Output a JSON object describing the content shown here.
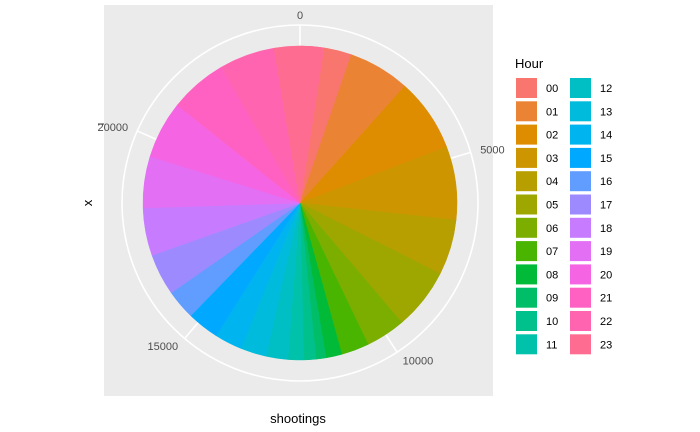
{
  "chart_data": {
    "type": "pie",
    "xlabel": "shootings",
    "ylabel": "x",
    "legend_title": "Hour",
    "legend_position": "right",
    "grid": true,
    "axis_range": [
      0,
      24500
    ],
    "ticks": [
      0,
      5000,
      10000,
      15000,
      20000
    ],
    "tick_labels": [
      "0",
      "5000",
      "10000",
      "15000",
      "20000"
    ],
    "categories": [
      "00",
      "01",
      "02",
      "03",
      "04",
      "05",
      "06",
      "07",
      "08",
      "09",
      "10",
      "11",
      "12",
      "13",
      "14",
      "15",
      "16",
      "17",
      "18",
      "19",
      "20",
      "21",
      "22",
      "23"
    ],
    "values": [
      1300,
      1550,
      1850,
      1850,
      1400,
      1550,
      1000,
      700,
      400,
      250,
      300,
      400,
      550,
      650,
      700,
      800,
      750,
      1050,
      1200,
      1300,
      1450,
      1450,
      1400,
      1250
    ],
    "colors": [
      "#F8766D",
      "#EB8335",
      "#DE8C00",
      "#CD9600",
      "#B79F00",
      "#9DA700",
      "#7CAE00",
      "#49B500",
      "#00BA38",
      "#00BE67",
      "#00C08B",
      "#00C1A9",
      "#00BFC4",
      "#00BBDC",
      "#00B4F0",
      "#00A9FF",
      "#619CFF",
      "#9E8AFF",
      "#C77CFF",
      "#E36FF5",
      "#F564E3",
      "#FF61C3",
      "#FF64B0",
      "#FF6C91"
    ]
  }
}
